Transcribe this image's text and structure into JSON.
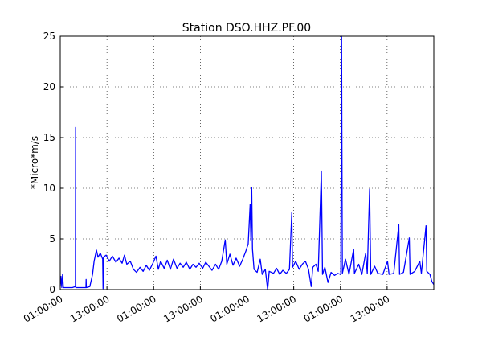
{
  "chart_data": {
    "type": "line",
    "title": "Station DSO.HHZ.PF.00",
    "ylabel": "*Micro*m/s",
    "xlim": [
      0,
      96
    ],
    "ylim": [
      0,
      25
    ],
    "xticks": [
      {
        "value": 0,
        "label": "01:00:00"
      },
      {
        "value": 12,
        "label": "13:00:00"
      },
      {
        "value": 24,
        "label": "01:00:00"
      },
      {
        "value": 36,
        "label": "13:00:00"
      },
      {
        "value": 48,
        "label": "01:00:00"
      },
      {
        "value": 60,
        "label": "13:00:00"
      },
      {
        "value": 72,
        "label": "01:00:00"
      },
      {
        "value": 84,
        "label": "13:00:00"
      }
    ],
    "yticks": [
      0,
      5,
      10,
      15,
      20,
      25
    ],
    "grid": true,
    "series": [
      {
        "color": "#0000ff",
        "x": [
          0,
          0.2,
          0.4,
          0.6,
          0.8,
          3.1,
          3.9,
          3.95,
          4.0,
          6.6,
          6.65,
          6.7,
          7.6,
          8.3,
          8.7,
          9.3,
          9.7,
          10.3,
          10.9,
          11.0,
          11.1,
          11.8,
          12.6,
          13.4,
          14.3,
          15.1,
          15.9,
          16.5,
          17.1,
          18.0,
          18.8,
          19.6,
          20.5,
          21.3,
          22.1,
          22.9,
          23.8,
          24.6,
          25.2,
          25.8,
          26.7,
          27.5,
          28.3,
          29.1,
          30.0,
          30.8,
          31.6,
          32.4,
          33.3,
          34.1,
          34.9,
          35.7,
          36.6,
          37.4,
          38.2,
          39.0,
          39.9,
          40.7,
          41.5,
          42.4,
          42.8,
          43.6,
          44.4,
          45.2,
          46.1,
          46.9,
          47.7,
          48.3,
          48.8,
          49.0,
          49.2,
          49.4,
          49.8,
          50.6,
          51.4,
          51.9,
          52.7,
          53.3,
          53.7,
          54.8,
          55.6,
          56.4,
          57.2,
          58.1,
          58.9,
          59.5,
          59.7,
          60.5,
          61.4,
          62.2,
          63.0,
          63.8,
          64.5,
          64.9,
          65.7,
          66.3,
          67.1,
          67.4,
          68.0,
          68.8,
          69.6,
          70.5,
          71.3,
          72.1,
          72.3,
          72.5,
          73.3,
          74.2,
          75.4,
          75.6,
          76.7,
          77.5,
          78.5,
          78.9,
          79.5,
          79.8,
          80.8,
          81.6,
          82.9,
          84.1,
          84.5,
          85.7,
          87.0,
          87.2,
          88.2,
          89.7,
          89.9,
          91.1,
          92.4,
          92.8,
          94.0,
          94.2,
          95.0,
          95.5,
          96.0
        ],
        "values": [
          0.3,
          1.3,
          0.2,
          1.5,
          0.2,
          0.2,
          0.3,
          16,
          0.2,
          0.2,
          1.0,
          0.2,
          0.3,
          1.5,
          2.8,
          3.9,
          3.2,
          3.6,
          3.0,
          0.1,
          3.2,
          3.4,
          2.8,
          3.3,
          2.7,
          3.1,
          2.6,
          3.4,
          2.5,
          2.8,
          2.0,
          1.7,
          2.2,
          1.8,
          2.4,
          1.9,
          2.6,
          3.3,
          2.0,
          2.8,
          2.1,
          2.9,
          2.0,
          3.0,
          2.1,
          2.6,
          2.2,
          2.7,
          2.0,
          2.5,
          2.2,
          2.6,
          2.1,
          2.7,
          2.3,
          1.9,
          2.5,
          2.0,
          2.8,
          4.9,
          2.5,
          3.5,
          2.4,
          3.1,
          2.3,
          3.0,
          3.8,
          4.5,
          8.4,
          4.8,
          10.1,
          4.0,
          2.0,
          1.7,
          3.0,
          1.5,
          2.0,
          0,
          1.8,
          1.6,
          2.1,
          1.5,
          1.9,
          1.6,
          2.0,
          7.6,
          2.2,
          2.8,
          2.0,
          2.5,
          2.8,
          2.0,
          0.3,
          2.2,
          2.5,
          1.8,
          11.7,
          1.5,
          2.2,
          0.7,
          1.7,
          1.4,
          1.6,
          1.5,
          25,
          1.6,
          3.0,
          1.5,
          4.0,
          1.6,
          2.5,
          1.5,
          3.6,
          1.6,
          9.9,
          1.5,
          2.3,
          1.6,
          1.5,
          2.8,
          1.5,
          1.6,
          6.4,
          1.5,
          1.7,
          5.1,
          1.5,
          1.8,
          2.8,
          1.6,
          6.3,
          1.8,
          1.5,
          0.8,
          0.5
        ]
      }
    ]
  }
}
